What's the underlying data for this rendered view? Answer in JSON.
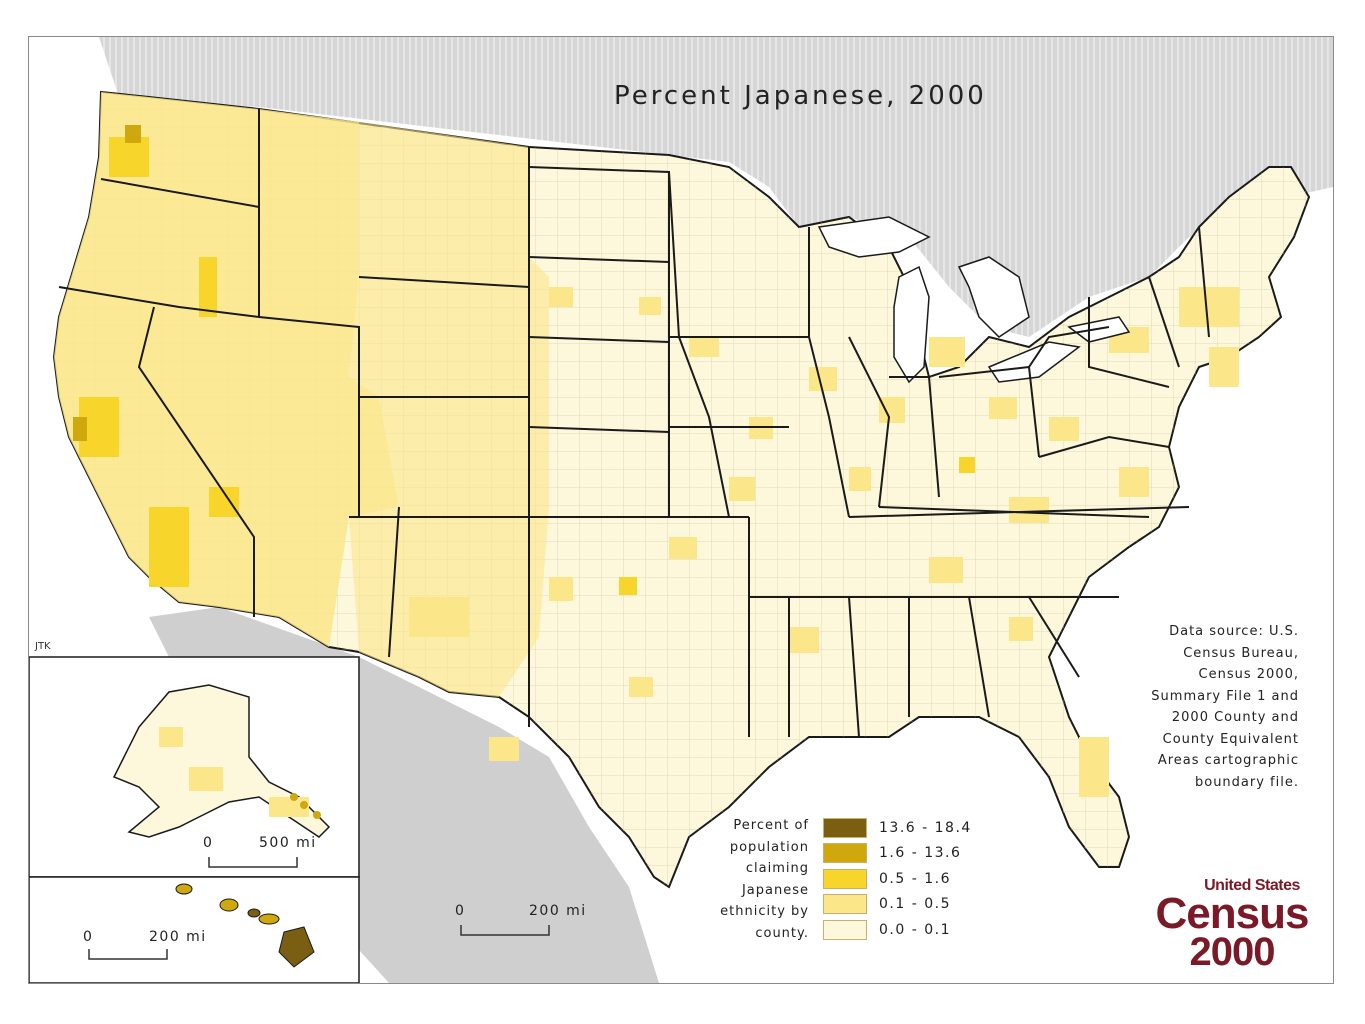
{
  "map": {
    "title": "Percent Japanese, 2000",
    "credit": "JTK",
    "data_source": "Data source: U.S.\nCensus Bureau,\nCensus 2000,\nSummary File 1 and\n2000 County and\nCounty Equivalent\nAreas cartographic\nboundary file.",
    "legend": {
      "title": "Percent of\npopulation\nclaiming\nJapanese\nethnicity by\ncounty.",
      "classes": [
        {
          "label": "13.6 - 18.4",
          "color": "#7a5e12"
        },
        {
          "label": "1.6 - 13.6",
          "color": "#cfa80e"
        },
        {
          "label": "0.5 - 1.6",
          "color": "#f7d52a"
        },
        {
          "label": "0.1 - 0.5",
          "color": "#fbe68a"
        },
        {
          "label": "0.0 - 0.1",
          "color": "#fdf7dc"
        }
      ]
    },
    "scale_bars": {
      "main": {
        "zero": "0",
        "distance": "200 mi"
      },
      "alaska": {
        "zero": "0",
        "distance": "500 mi"
      },
      "hawaii": {
        "zero": "0",
        "distance": "200 mi"
      }
    },
    "logo": {
      "line1": "United States",
      "line2": "Census",
      "line3": "2000"
    },
    "colors": {
      "water": "#d9d9d9",
      "canada": "#dcdcdc",
      "state_border": "#1a1a1a"
    }
  }
}
